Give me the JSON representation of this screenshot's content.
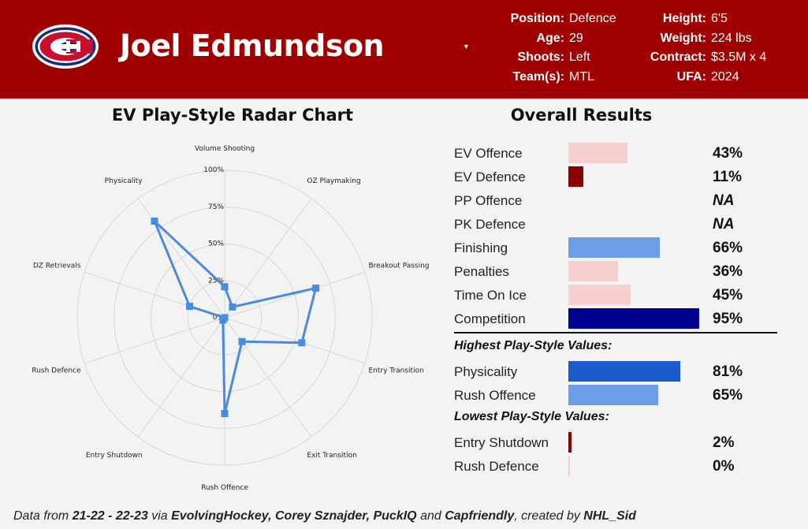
{
  "player": {
    "name": "Joel Edmundson",
    "position_label": "Position:",
    "position": "Defence",
    "age_label": "Age:",
    "age": "29",
    "shoots_label": "Shoots:",
    "shoots": "Left",
    "teams_label": "Team(s):",
    "teams": "MTL",
    "height_label": "Height:",
    "height": "6'5",
    "weight_label": "Weight:",
    "weight": "224 lbs",
    "contract_label": "Contract:",
    "contract": "$3.5M x 4",
    "ufa_label": "UFA:",
    "ufa": "2024"
  },
  "colors": {
    "header": "#a10000",
    "radar_line": "#4a8ae0",
    "bar_light_red": "#f6cfcf",
    "bar_dark_red": "#8b0000",
    "bar_light_blue": "#6c9ee8",
    "bar_mid_blue": "#1c5bcc",
    "bar_navy": "#000090"
  },
  "chart_data": [
    {
      "type": "radar",
      "title": "EV Play-Style Radar Chart",
      "categories": [
        "Volume Shooting",
        "OZ Playmaking",
        "Breakout Passing",
        "Entry Transition",
        "Exit Transition",
        "Rush Offence",
        "Entry Shutdown",
        "Rush Defence",
        "DZ Retrievals",
        "Physicality"
      ],
      "tick_labels": [
        "0%",
        "25%",
        "50%",
        "75%",
        "100%"
      ],
      "range": [
        0,
        100
      ],
      "values": [
        21,
        9,
        65,
        55,
        20,
        65,
        2,
        0,
        25,
        81
      ]
    },
    {
      "type": "bar",
      "title": "Overall Results",
      "sections": [
        {
          "heading": "",
          "rows": [
            {
              "label": "EV Offence",
              "value": 43,
              "display": "43%",
              "color": "#f6cfcf"
            },
            {
              "label": "EV Defence",
              "value": 11,
              "display": "11%",
              "color": "#8b0000"
            },
            {
              "label": "PP Offence",
              "value": null,
              "display": "NA",
              "color": ""
            },
            {
              "label": "PK Defence",
              "value": null,
              "display": "NA",
              "color": ""
            },
            {
              "label": "Finishing",
              "value": 66,
              "display": "66%",
              "color": "#6c9ee8"
            },
            {
              "label": "Penalties",
              "value": 36,
              "display": "36%",
              "color": "#f6cfcf"
            },
            {
              "label": "Time On Ice",
              "value": 45,
              "display": "45%",
              "color": "#f6cfcf"
            },
            {
              "label": "Competition",
              "value": 95,
              "display": "95%",
              "color": "#000090"
            }
          ]
        },
        {
          "heading": "Highest Play-Style Values:",
          "rows": [
            {
              "label": "Physicality",
              "value": 81,
              "display": "81%",
              "color": "#1c5bcc"
            },
            {
              "label": "Rush Offence",
              "value": 65,
              "display": "65%",
              "color": "#6c9ee8"
            }
          ]
        },
        {
          "heading": "Lowest Play-Style Values:",
          "rows": [
            {
              "label": "Entry Shutdown",
              "value": 2,
              "display": "2%",
              "color": "#8b0000"
            },
            {
              "label": "Rush Defence",
              "value": 0,
              "display": "0%",
              "color": "#f6cfcf"
            }
          ]
        }
      ]
    }
  ],
  "footer": {
    "p1": "Data from ",
    "seasons": "21-22 - 22-23",
    "p2": " via ",
    "sources": "EvolvingHockey, Corey Sznajder, PuckIQ",
    "p3": " and ",
    "source_last": "Capfriendly",
    "p4": ", created by ",
    "author": "NHL_Sid"
  }
}
